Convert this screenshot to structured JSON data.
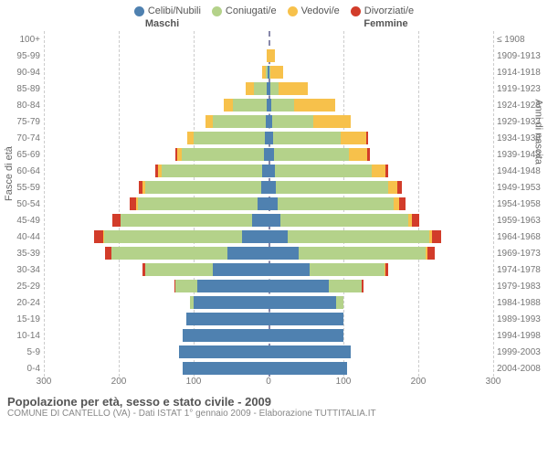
{
  "legend": [
    {
      "label": "Celibi/Nubili",
      "color": "#4f81b0"
    },
    {
      "label": "Coniugati/e",
      "color": "#b4d28a"
    },
    {
      "label": "Vedovi/e",
      "color": "#f7c14b"
    },
    {
      "label": "Divorziati/e",
      "color": "#d23c2a"
    }
  ],
  "header": {
    "male": "Maschi",
    "female": "Femmine"
  },
  "axis": {
    "y_left_title": "Fasce di età",
    "y_right_title": "Anni di nascita",
    "x_max": 300,
    "x_ticks": [
      300,
      200,
      100,
      0,
      100,
      200,
      300
    ],
    "x_tick_labels": [
      "300",
      "200",
      "100",
      "0",
      "100",
      "200",
      "300"
    ]
  },
  "grid_color": "#cccccc",
  "center_color": "#8899bb",
  "rows": [
    {
      "age": "100+",
      "birth": "≤ 1908",
      "m": {
        "s": 0,
        "c": 0,
        "w": 0,
        "d": 0
      },
      "f": {
        "s": 0,
        "c": 0,
        "w": 0,
        "d": 0
      }
    },
    {
      "age": "95-99",
      "birth": "1909-1913",
      "m": {
        "s": 0,
        "c": 0,
        "w": 3,
        "d": 0
      },
      "f": {
        "s": 0,
        "c": 0,
        "w": 8,
        "d": 0
      }
    },
    {
      "age": "90-94",
      "birth": "1914-1918",
      "m": {
        "s": 1,
        "c": 3,
        "w": 5,
        "d": 0
      },
      "f": {
        "s": 1,
        "c": 2,
        "w": 17,
        "d": 0
      }
    },
    {
      "age": "85-89",
      "birth": "1919-1923",
      "m": {
        "s": 2,
        "c": 18,
        "w": 10,
        "d": 0
      },
      "f": {
        "s": 3,
        "c": 10,
        "w": 40,
        "d": 0
      }
    },
    {
      "age": "80-84",
      "birth": "1924-1928",
      "m": {
        "s": 3,
        "c": 45,
        "w": 12,
        "d": 0
      },
      "f": {
        "s": 4,
        "c": 30,
        "w": 55,
        "d": 0
      }
    },
    {
      "age": "75-79",
      "birth": "1929-1933",
      "m": {
        "s": 4,
        "c": 70,
        "w": 10,
        "d": 0
      },
      "f": {
        "s": 5,
        "c": 55,
        "w": 50,
        "d": 0
      }
    },
    {
      "age": "70-74",
      "birth": "1934-1938",
      "m": {
        "s": 5,
        "c": 95,
        "w": 8,
        "d": 0
      },
      "f": {
        "s": 6,
        "c": 90,
        "w": 35,
        "d": 2
      }
    },
    {
      "age": "65-69",
      "birth": "1939-1943",
      "m": {
        "s": 6,
        "c": 110,
        "w": 6,
        "d": 2
      },
      "f": {
        "s": 7,
        "c": 100,
        "w": 25,
        "d": 3
      }
    },
    {
      "age": "60-64",
      "birth": "1944-1948",
      "m": {
        "s": 8,
        "c": 135,
        "w": 5,
        "d": 3
      },
      "f": {
        "s": 8,
        "c": 130,
        "w": 18,
        "d": 4
      }
    },
    {
      "age": "55-59",
      "birth": "1949-1953",
      "m": {
        "s": 10,
        "c": 155,
        "w": 3,
        "d": 5
      },
      "f": {
        "s": 10,
        "c": 150,
        "w": 12,
        "d": 6
      }
    },
    {
      "age": "50-54",
      "birth": "1954-1958",
      "m": {
        "s": 15,
        "c": 160,
        "w": 2,
        "d": 8
      },
      "f": {
        "s": 12,
        "c": 155,
        "w": 8,
        "d": 8
      }
    },
    {
      "age": "45-49",
      "birth": "1959-1963",
      "m": {
        "s": 22,
        "c": 175,
        "w": 1,
        "d": 10
      },
      "f": {
        "s": 16,
        "c": 170,
        "w": 5,
        "d": 10
      }
    },
    {
      "age": "40-44",
      "birth": "1964-1968",
      "m": {
        "s": 35,
        "c": 185,
        "w": 1,
        "d": 12
      },
      "f": {
        "s": 25,
        "c": 190,
        "w": 3,
        "d": 12
      }
    },
    {
      "age": "35-39",
      "birth": "1969-1973",
      "m": {
        "s": 55,
        "c": 155,
        "w": 0,
        "d": 8
      },
      "f": {
        "s": 40,
        "c": 170,
        "w": 2,
        "d": 10
      }
    },
    {
      "age": "30-34",
      "birth": "1974-1978",
      "m": {
        "s": 75,
        "c": 90,
        "w": 0,
        "d": 3
      },
      "f": {
        "s": 55,
        "c": 100,
        "w": 1,
        "d": 4
      }
    },
    {
      "age": "25-29",
      "birth": "1979-1983",
      "m": {
        "s": 95,
        "c": 30,
        "w": 0,
        "d": 1
      },
      "f": {
        "s": 80,
        "c": 45,
        "w": 0,
        "d": 2
      }
    },
    {
      "age": "20-24",
      "birth": "1984-1988",
      "m": {
        "s": 100,
        "c": 5,
        "w": 0,
        "d": 0
      },
      "f": {
        "s": 90,
        "c": 10,
        "w": 0,
        "d": 0
      }
    },
    {
      "age": "15-19",
      "birth": "1989-1993",
      "m": {
        "s": 110,
        "c": 0,
        "w": 0,
        "d": 0
      },
      "f": {
        "s": 100,
        "c": 0,
        "w": 0,
        "d": 0
      }
    },
    {
      "age": "10-14",
      "birth": "1994-1998",
      "m": {
        "s": 115,
        "c": 0,
        "w": 0,
        "d": 0
      },
      "f": {
        "s": 100,
        "c": 0,
        "w": 0,
        "d": 0
      }
    },
    {
      "age": "5-9",
      "birth": "1999-2003",
      "m": {
        "s": 120,
        "c": 0,
        "w": 0,
        "d": 0
      },
      "f": {
        "s": 110,
        "c": 0,
        "w": 0,
        "d": 0
      }
    },
    {
      "age": "0-4",
      "birth": "2004-2008",
      "m": {
        "s": 115,
        "c": 0,
        "w": 0,
        "d": 0
      },
      "f": {
        "s": 105,
        "c": 0,
        "w": 0,
        "d": 0
      }
    }
  ],
  "footer": {
    "title": "Popolazione per età, sesso e stato civile - 2009",
    "sub": "COMUNE DI CANTELLO (VA) - Dati ISTAT 1° gennaio 2009 - Elaborazione TUTTITALIA.IT"
  }
}
